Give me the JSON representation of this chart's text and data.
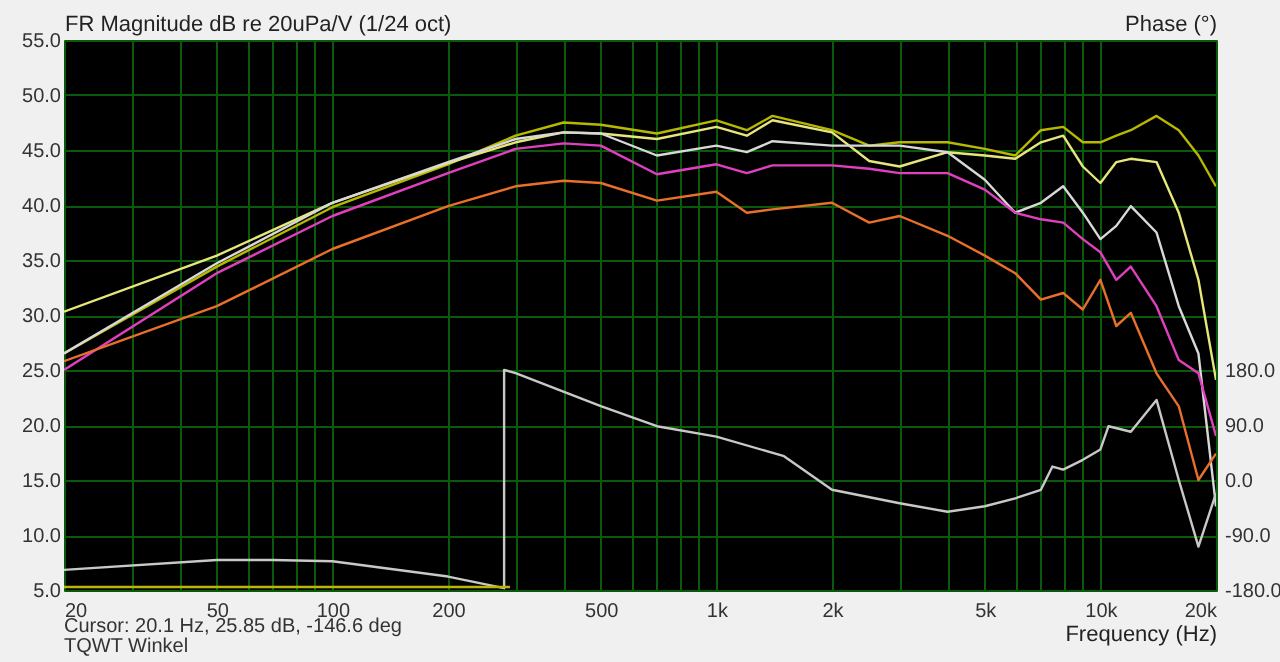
{
  "chart_data": {
    "type": "line",
    "ylabel": "FR Magnitude dB re 20uPa/V (1/24 oct)",
    "y2label": "Phase (°)",
    "xlabel": "Frequency (Hz)",
    "annotations": [
      "Cursor: 20.1 Hz, 25.85 dB, -146.6 deg",
      "TQWT Winkel"
    ],
    "log": "x",
    "grid": true,
    "xlim": [
      20,
      20000
    ],
    "xticks": [
      20,
      {
        "value": 30,
        "label": null
      },
      {
        "value": 40,
        "label": null
      },
      50,
      {
        "value": 60,
        "label": null
      },
      {
        "value": 70,
        "label": null
      },
      {
        "value": 80,
        "label": null
      },
      {
        "value": 90,
        "label": null
      },
      100,
      200,
      {
        "value": 300,
        "label": null
      },
      {
        "value": 400,
        "label": null
      },
      500,
      {
        "value": 600,
        "label": null
      },
      {
        "value": 700,
        "label": null
      },
      {
        "value": 800,
        "label": null
      },
      {
        "value": 900,
        "label": null
      },
      {
        "value": 1000,
        "label": "1k"
      },
      {
        "value": 2000,
        "label": "2k"
      },
      {
        "value": 3000,
        "label": null
      },
      {
        "value": 4000,
        "label": null
      },
      {
        "value": 5000,
        "label": "5k"
      },
      {
        "value": 6000,
        "label": null
      },
      {
        "value": 7000,
        "label": null
      },
      {
        "value": 8000,
        "label": null
      },
      {
        "value": 9000,
        "label": null
      },
      {
        "value": 10000,
        "label": "10k"
      },
      {
        "value": 20000,
        "label": "20k"
      }
    ],
    "ylim": [
      5,
      55
    ],
    "yticks": [
      {
        "value": 5,
        "label": "5.0"
      },
      {
        "value": 10,
        "label": "10.0"
      },
      {
        "value": 15,
        "label": "15.0"
      },
      {
        "value": 20,
        "label": "20.0"
      },
      {
        "value": 25,
        "label": "25.0"
      },
      {
        "value": 30,
        "label": "30.0"
      },
      {
        "value": 35,
        "label": "35.0"
      },
      {
        "value": 40,
        "label": "40.0"
      },
      {
        "value": 45,
        "label": "45.0"
      },
      {
        "value": 50,
        "label": "50.0"
      },
      {
        "value": 55,
        "label": "55.0"
      }
    ],
    "y2lim": [
      -180,
      720
    ],
    "y2ticks": [
      {
        "value": -180,
        "label": "-180.0"
      },
      {
        "value": -90,
        "label": "-90.0"
      },
      {
        "value": 0,
        "label": "0.0"
      },
      {
        "value": 90,
        "label": "90.0"
      },
      {
        "value": 180,
        "label": "180.0"
      }
    ],
    "x": [
      20,
      50,
      100,
      200,
      300,
      400,
      500,
      700,
      1000,
      1200,
      1400,
      2000,
      2500,
      3000,
      4000,
      5000,
      6000,
      7000,
      8000,
      9000,
      10000,
      11000,
      12000,
      14000,
      16000,
      18000,
      20000
    ],
    "series": [
      {
        "color": "#b8b800",
        "values": [
          26.5,
          34.4,
          39.8,
          43.7,
          46.3,
          47.5,
          47.3,
          46.5,
          47.7,
          46.8,
          48.1,
          46.8,
          45.4,
          45.7,
          45.7,
          45.1,
          44.5,
          46.8,
          47.1,
          45.7,
          45.7,
          46.3,
          46.8,
          48.1,
          46.8,
          44.5,
          41.7
        ]
      },
      {
        "color": "#e6e67a",
        "values": [
          30.3,
          35.4,
          40.2,
          43.8,
          45.7,
          46.6,
          46.5,
          46.0,
          47.1,
          46.3,
          47.7,
          46.6,
          44.0,
          43.5,
          44.8,
          44.5,
          44.2,
          45.7,
          46.3,
          43.5,
          42.0,
          43.9,
          44.2,
          43.9,
          39.3,
          33.2,
          24.1
        ]
      },
      {
        "color": "#d8d8d8",
        "values": [
          26.5,
          34.7,
          40.2,
          43.9,
          46.0,
          46.6,
          46.5,
          44.5,
          45.4,
          44.8,
          45.8,
          45.4,
          45.4,
          45.4,
          44.8,
          42.3,
          39.3,
          40.2,
          41.7,
          39.3,
          36.9,
          38.1,
          39.9,
          37.5,
          30.8,
          26.5,
          12.6
        ]
      },
      {
        "color": "#e040c0",
        "values": [
          25.0,
          33.8,
          39.0,
          42.9,
          45.1,
          45.6,
          45.4,
          42.8,
          43.7,
          42.9,
          43.6,
          43.6,
          43.3,
          42.9,
          42.9,
          41.4,
          39.3,
          38.7,
          38.4,
          36.9,
          35.7,
          33.2,
          34.4,
          30.8,
          25.9,
          24.7,
          19.0
        ]
      },
      {
        "color": "#e8702a",
        "values": [
          25.8,
          30.8,
          36.0,
          39.9,
          41.7,
          42.2,
          42.0,
          40.4,
          41.2,
          39.3,
          39.6,
          40.2,
          38.4,
          39.0,
          37.2,
          35.4,
          33.8,
          31.4,
          32.0,
          30.5,
          33.2,
          29.0,
          30.2,
          24.7,
          21.7,
          15.0,
          17.4
        ]
      },
      {
        "color": "#c8c8c8",
        "axis": "y2",
        "x": [
          20,
          50,
          70,
          100,
          200,
          280,
          280,
          300,
          500,
          700,
          1000,
          1500,
          2000,
          3000,
          4000,
          5000,
          6000,
          7000,
          7500,
          8000,
          9000,
          10000,
          10500,
          12000,
          14000,
          16000,
          18000,
          20000
        ],
        "values": [
          -147,
          -131,
          -131,
          -133,
          -158,
          -177,
          180,
          175,
          121,
          88,
          71,
          39,
          -16,
          -38,
          -52,
          -43,
          -30,
          -16,
          22,
          17,
          33,
          50,
          88,
          79,
          131,
          0,
          -109,
          -22
        ]
      },
      {
        "color": "#b8b800",
        "axis": "y2",
        "x": [
          20,
          290
        ],
        "values": [
          -175,
          -175
        ]
      }
    ]
  }
}
